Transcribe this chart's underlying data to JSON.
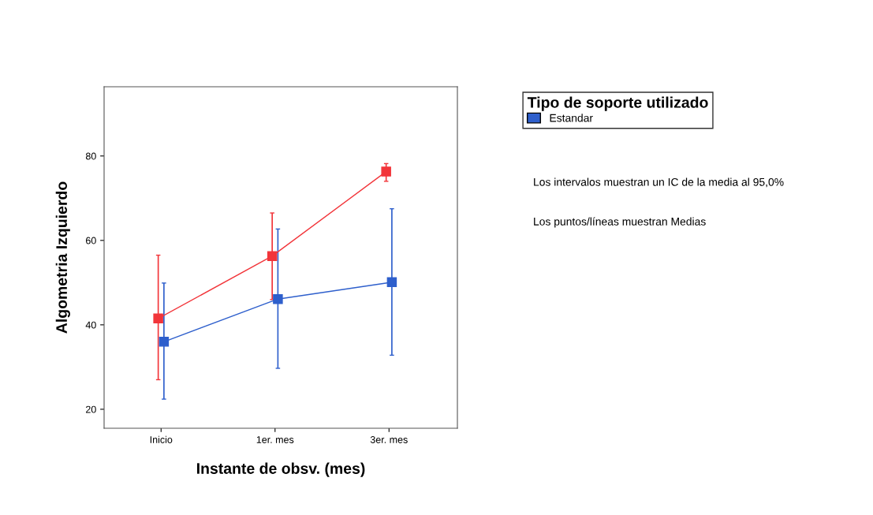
{
  "chart_data": {
    "type": "line",
    "xlabel": "Instante de obsv. (mes)",
    "ylabel": "Algometria Izquierdo",
    "legend_title": "Tipo de soporte utilizado",
    "categories": [
      "Inicio",
      "1er. mes",
      "3er. mes"
    ],
    "series": [
      {
        "color": "#f2353a",
        "values": [
          41.5,
          56.3,
          76.3
        ],
        "errors": [
          [
            27,
            56.5
          ],
          [
            46,
            66.5
          ],
          [
            74,
            78.2
          ]
        ]
      },
      {
        "name": "Estandar",
        "color": "#2e5fcc",
        "values": [
          36,
          46.1,
          50.1
        ],
        "errors": [
          [
            22.4,
            49.9
          ],
          [
            29.7,
            62.7
          ],
          [
            32.8,
            67.5
          ]
        ]
      }
    ],
    "ylim": [
      15.5,
      96.4
    ],
    "yticks": [
      20,
      40,
      60,
      80
    ],
    "marker": "square",
    "line_style": "solid",
    "grid": false,
    "legend": "top right",
    "annotations": [
      "Los intervalos muestran un IC de la media al 95,0%",
      "Los puntos/líneas muestran Medias"
    ]
  }
}
